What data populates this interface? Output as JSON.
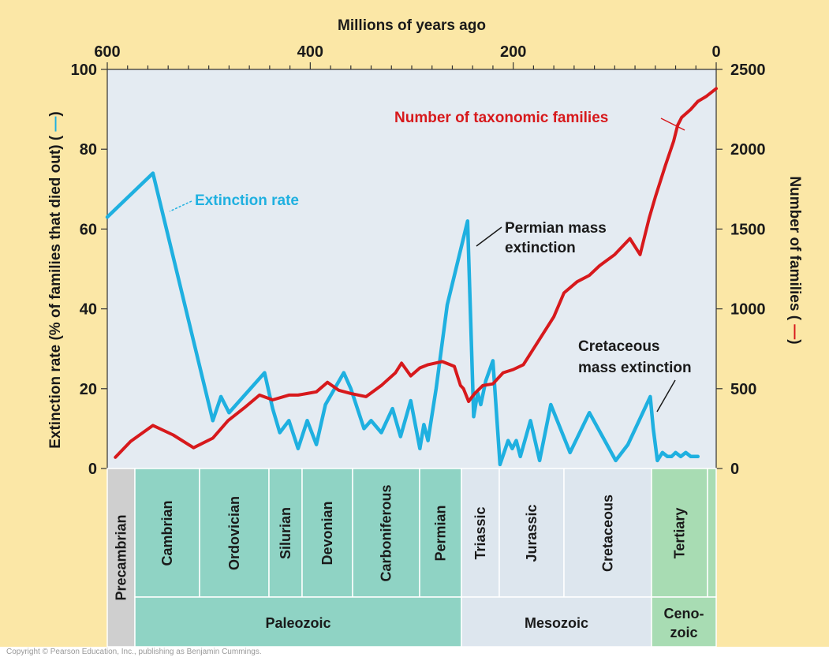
{
  "colors": {
    "background": "#fbe7a6",
    "plot_area": "#e4ebf2",
    "extinction_line": "#1fb0e0",
    "families_line": "#d7191c",
    "paleozoic": "#8fd3c4",
    "mesozoic": "#dde6ee",
    "cenozoic": "#a8dcb3",
    "precambrian": "#cfcfcf"
  },
  "chart_data": {
    "type": "line",
    "x_axis": {
      "title": "Millions of years ago",
      "ticks": [
        "600",
        "400",
        "200",
        "0"
      ],
      "range": [
        600,
        0
      ],
      "reversed": true,
      "position": "top"
    },
    "y_left": {
      "title": "Extinction rate (% of families that died out) (",
      "ticks": [
        "0",
        "20",
        "40",
        "60",
        "80",
        "100"
      ],
      "range": [
        0,
        100
      ]
    },
    "y_right": {
      "title": "Number of families (",
      "ticks": [
        "0",
        "500",
        "1000",
        "1500",
        "2000",
        "2500"
      ],
      "range": [
        0,
        2500
      ]
    },
    "grid": false,
    "series": [
      {
        "name": "Extinction rate",
        "axis": "left",
        "color": "#1fb0e0",
        "x": [
          600,
          555,
          496,
          488,
          480,
          445,
          437,
          430,
          421,
          412,
          403,
          394,
          385,
          367,
          360,
          347,
          340,
          330,
          319,
          311,
          301,
          292,
          288,
          284,
          276,
          265,
          245,
          239,
          235,
          232,
          227,
          220,
          213,
          205,
          201,
          197,
          193,
          183,
          174,
          163,
          144,
          125,
          99,
          87,
          65,
          62,
          58,
          53,
          48,
          44,
          40,
          35,
          30,
          25,
          18
        ],
        "y": [
          63,
          74,
          12,
          18,
          14,
          24,
          15,
          9,
          12,
          5,
          12,
          6,
          16,
          24,
          20,
          10,
          12,
          9,
          15,
          8,
          17,
          5,
          11,
          7,
          20,
          41,
          62,
          13,
          19,
          16,
          22,
          27,
          1,
          7,
          5,
          7,
          3,
          12,
          2,
          16,
          4,
          14,
          2,
          6,
          18,
          10,
          2,
          4,
          3,
          3,
          4,
          3,
          4,
          3,
          3
        ]
      },
      {
        "name": "Number of taxonomic families",
        "axis": "right",
        "color": "#d7191c",
        "x": [
          592,
          577,
          555,
          535,
          515,
          496,
          481,
          465,
          450,
          437,
          421,
          412,
          403,
          394,
          383,
          372,
          360,
          345,
          330,
          323,
          316,
          310,
          301,
          292,
          284,
          270,
          258,
          252,
          249,
          244,
          238,
          230,
          220,
          210,
          200,
          190,
          175,
          160,
          150,
          137,
          125,
          115,
          100,
          85,
          75,
          66,
          60,
          50,
          42,
          38,
          34,
          25,
          18,
          10,
          0
        ],
        "y": [
          70,
          170,
          270,
          210,
          130,
          190,
          300,
          380,
          460,
          430,
          460,
          460,
          470,
          480,
          540,
          490,
          470,
          450,
          520,
          560,
          600,
          660,
          580,
          630,
          650,
          670,
          640,
          520,
          500,
          420,
          470,
          520,
          530,
          600,
          620,
          650,
          800,
          950,
          1100,
          1170,
          1210,
          1270,
          1340,
          1440,
          1340,
          1570,
          1700,
          1900,
          2050,
          2150,
          2200,
          2250,
          2300,
          2330,
          2380
        ]
      }
    ],
    "annotations": [
      {
        "text": "Number of taxonomic families",
        "color": "#d7191c",
        "points_to_series": "Number of taxonomic families"
      },
      {
        "text": "Extinction rate",
        "color": "#1fb0e0",
        "points_to_series": "Extinction rate"
      },
      {
        "text": "Permian mass",
        "line2": "extinction",
        "color": "#1a1a1a"
      },
      {
        "text": "Cretaceous",
        "line2": "mass extinction",
        "color": "#1a1a1a"
      }
    ],
    "periods": [
      {
        "name": "Precambrian",
        "era": "precambrian"
      },
      {
        "name": "Cambrian",
        "era": "paleozoic"
      },
      {
        "name": "Ordovician",
        "era": "paleozoic"
      },
      {
        "name": "Silurian",
        "era": "paleozoic"
      },
      {
        "name": "Devonian",
        "era": "paleozoic"
      },
      {
        "name": "Carboniferous",
        "era": "paleozoic"
      },
      {
        "name": "Permian",
        "era": "paleozoic"
      },
      {
        "name": "Triassic",
        "era": "mesozoic"
      },
      {
        "name": "Jurassic",
        "era": "mesozoic"
      },
      {
        "name": "Cretaceous",
        "era": "mesozoic"
      },
      {
        "name": "Tertiary",
        "era": "cenozoic"
      },
      {
        "name": "",
        "era": "cenozoic"
      }
    ],
    "eras": [
      {
        "name": "Paleozoic",
        "key": "paleozoic"
      },
      {
        "name": "Mesozoic",
        "key": "mesozoic"
      },
      {
        "name": "Ceno-",
        "line2": "zoic",
        "key": "cenozoic"
      }
    ]
  }
}
